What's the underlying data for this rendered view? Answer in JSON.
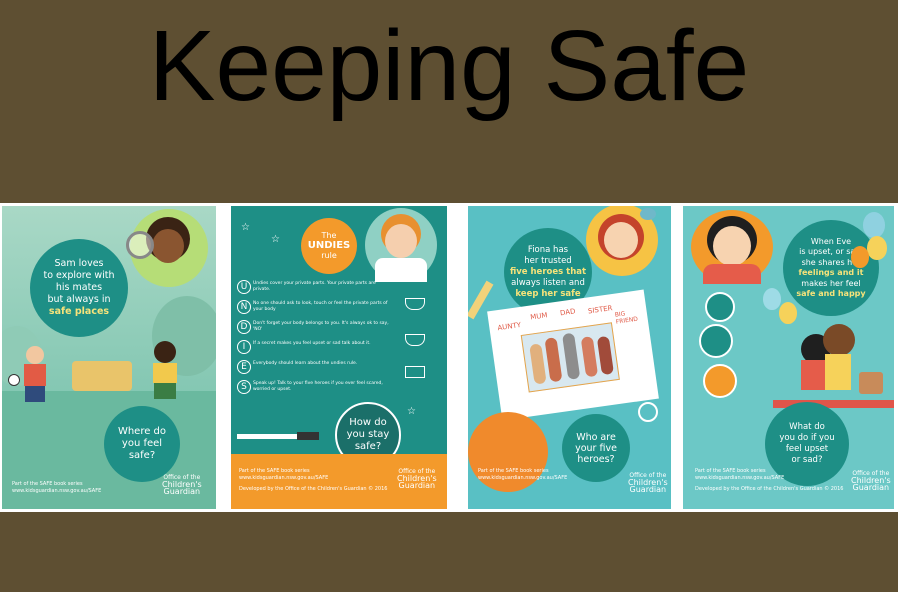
{
  "title": "Keeping Safe",
  "posters": [
    {
      "headline_lines": [
        "Sam loves",
        "to explore with",
        "his mates",
        "but always in",
        "safe places"
      ],
      "question_lines": [
        "Where do",
        "you feel",
        "safe?"
      ],
      "footer_lines": [
        "Part of the SAFE book series",
        "www.kidsguardian.nsw.gov.au/SAFE"
      ],
      "brand_lines": [
        "Office of the",
        "Children's",
        "Guardian"
      ]
    },
    {
      "header_lines": [
        "The",
        "UNDIES",
        "rule"
      ],
      "rules": [
        {
          "letter": "U",
          "text": "Undies cover your private parts. Your private parts are private."
        },
        {
          "letter": "N",
          "text": "No one should ask to look, touch or feel the private parts of your body"
        },
        {
          "letter": "D",
          "text": "Don't forget your body belongs to you. It's always ok to say, 'NO'"
        },
        {
          "letter": "I",
          "text": "If a secret makes you feel upset or sad talk about it."
        },
        {
          "letter": "E",
          "text": "Everybody should learn about the undies rule."
        },
        {
          "letter": "S",
          "text": "Speak up! Talk to your five heroes if you ever feel scared, worried or upset."
        }
      ],
      "question_lines": [
        "How do",
        "you stay",
        "safe?"
      ],
      "footer_lines": [
        "Part of the SAFE book series",
        "www.kidsguardian.nsw.gov.au/SAFE",
        "Developed by the Office of the Children's Guardian © 2016"
      ],
      "brand_lines": [
        "Office of the",
        "Children's",
        "Guardian"
      ]
    },
    {
      "headline_lines": [
        "Fiona has",
        "her trusted",
        "five heroes that",
        "always listen and",
        "keep her safe"
      ],
      "heroes": [
        "AUNTY",
        "MUM",
        "DAD",
        "SISTER",
        "BIG FRIEND"
      ],
      "question_lines": [
        "Who are",
        "your five",
        "heroes?"
      ],
      "footer_lines": [
        "Part of the SAFE book series",
        "www.kidsguardian.nsw.gov.au/SAFE"
      ],
      "brand_lines": [
        "Office of the",
        "Children's",
        "Guardian"
      ]
    },
    {
      "headline_lines": [
        "When Eve",
        "is upset, or sad,",
        "she shares her",
        "feelings and it",
        "makes her feel",
        "safe and happy"
      ],
      "question_lines": [
        "What do",
        "you do if you",
        "feel upset",
        "or sad?"
      ],
      "footer_lines": [
        "Part of the SAFE book series",
        "www.kidsguardian.nsw.gov.au/SAFE",
        "Developed by the Office of the Children's Guardian © 2016"
      ],
      "brand_lines": [
        "Office of the",
        "Children's",
        "Guardian"
      ]
    }
  ],
  "colors": {
    "background": "#5e4f32",
    "bubble_green": "#1e8f86",
    "poster_orange": "#f39a2b"
  }
}
